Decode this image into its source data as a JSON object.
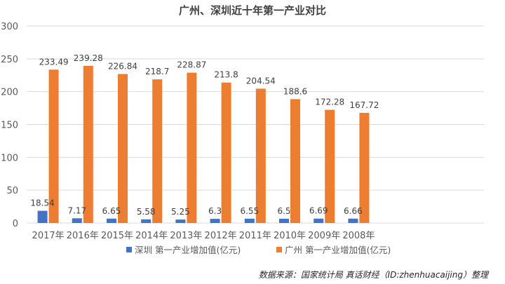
{
  "chart_data": {
    "type": "bar",
    "title": "广州、深圳近十年第一产业对比",
    "categories": [
      "2017年",
      "2016年",
      "2015年",
      "2014年",
      "2013年",
      "2012年",
      "2011年",
      "2010年",
      "2009年",
      "2008年"
    ],
    "series": [
      {
        "name": "深圳 第一产业增加值(亿元)",
        "color": "#4472c4",
        "values": [
          18.54,
          7.17,
          6.65,
          5.58,
          5.25,
          6.3,
          6.55,
          6.5,
          6.69,
          6.66
        ],
        "labels": [
          "18.54",
          "7.17",
          "6.65",
          "5.58",
          "5.25",
          "6.3",
          "6.55",
          "6.5",
          "6.69",
          "6.66"
        ]
      },
      {
        "name": "广州 第一产业增加值(亿元)",
        "color": "#ed7d31",
        "values": [
          233.49,
          239.28,
          226.84,
          218.7,
          228.87,
          213.8,
          204.54,
          188.6,
          172.28,
          167.72
        ],
        "labels": [
          "233.49",
          "239.28",
          "226.84",
          "218.7",
          "228.87",
          "213.8",
          "204.54",
          "188.6",
          "172.28",
          "167.72"
        ]
      }
    ],
    "ylim": [
      0,
      300
    ],
    "yticks": [
      0,
      50,
      100,
      150,
      200,
      250,
      300
    ],
    "grid": true,
    "legend": "bottom",
    "source": "数据来源：国家统计局 真话财经（ID:zhenhuacaijing）整理"
  }
}
